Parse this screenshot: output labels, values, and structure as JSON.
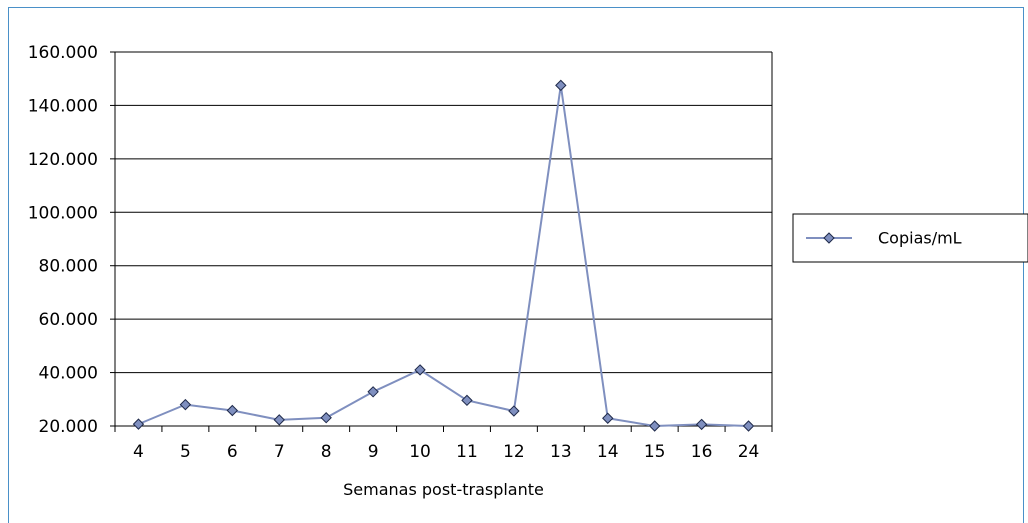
{
  "chart_data": {
    "type": "line",
    "title": "",
    "xlabel": "Semanas post-trasplante",
    "ylabel": "",
    "categories": [
      "4",
      "5",
      "6",
      "7",
      "8",
      "9",
      "10",
      "11",
      "12",
      "13",
      "14",
      "15",
      "16",
      "24"
    ],
    "series": [
      {
        "name": "Copias/mL",
        "color": "#7f8fbf",
        "marker": "diamond",
        "values": [
          20700,
          28000,
          25800,
          22300,
          23100,
          32800,
          41000,
          29600,
          25600,
          147500,
          22900,
          20000,
          20600,
          20000
        ]
      }
    ],
    "ylim": [
      20000,
      160000
    ],
    "yticks": [
      20000,
      40000,
      60000,
      80000,
      100000,
      120000,
      140000,
      160000
    ],
    "ytick_labels": [
      "20.000",
      "40.000",
      "60.000",
      "80.000",
      "100.000",
      "120.000",
      "140.000",
      "160.000"
    ],
    "grid": true,
    "legend": "right"
  }
}
